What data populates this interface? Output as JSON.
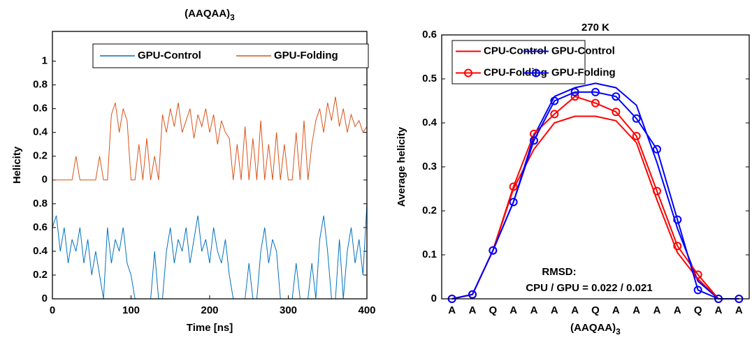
{
  "chart_data": [
    {
      "type": "line",
      "title": "(AAQAA)",
      "title_subscript": "3",
      "xlabel": "Time [ns]",
      "ylabel": "Helicity",
      "x": [
        0,
        5,
        10,
        15,
        20,
        25,
        30,
        35,
        40,
        45,
        50,
        55,
        60,
        65,
        70,
        75,
        80,
        85,
        90,
        95,
        100,
        105,
        110,
        115,
        120,
        125,
        130,
        135,
        140,
        145,
        150,
        155,
        160,
        165,
        170,
        175,
        180,
        185,
        190,
        195,
        200,
        205,
        210,
        215,
        220,
        225,
        230,
        235,
        240,
        245,
        250,
        255,
        260,
        265,
        270,
        275,
        280,
        285,
        290,
        295,
        300,
        305,
        310,
        315,
        320,
        325,
        330,
        335,
        340,
        345,
        350,
        355,
        360,
        365,
        370,
        375,
        380,
        385,
        390,
        395,
        400
      ],
      "series": [
        {
          "name": "GPU-Control",
          "color": "#0072bd",
          "values": [
            0.6,
            0.7,
            0.4,
            0.6,
            0.3,
            0.5,
            0.4,
            0.6,
            0.3,
            0.5,
            0.2,
            0.4,
            0.2,
            0,
            0.6,
            0.3,
            0.5,
            0.4,
            0.6,
            0.3,
            0.2,
            0,
            0,
            0,
            0,
            0,
            0.4,
            0,
            0,
            0.4,
            0.6,
            0.3,
            0.5,
            0.4,
            0.6,
            0.3,
            0.5,
            0.7,
            0.4,
            0.5,
            0.3,
            0.6,
            0.4,
            0.3,
            0.5,
            0.2,
            0,
            0,
            0,
            0,
            0.3,
            0,
            0,
            0.4,
            0.6,
            0.3,
            0.5,
            0.4,
            0,
            0,
            0,
            0,
            0.3,
            0,
            0,
            0,
            0.3,
            0,
            0.5,
            0.7,
            0.4,
            0,
            0,
            0.5,
            0,
            0.4,
            0.6,
            0.3,
            0.5,
            0.2,
            0.8
          ]
        },
        {
          "name": "GPU-Folding",
          "color": "#d95319",
          "values": [
            1,
            1,
            1,
            1,
            1,
            1,
            1.2,
            1,
            1,
            1,
            1,
            1,
            1.2,
            1,
            1,
            1.55,
            1.65,
            1.4,
            1.6,
            1.5,
            1,
            1,
            1.3,
            1,
            1.35,
            1,
            1.2,
            1,
            1.55,
            1.4,
            1.6,
            1.45,
            1.65,
            1.4,
            1.5,
            1.6,
            1.35,
            1.55,
            1.45,
            1.6,
            1.4,
            1.55,
            1.3,
            1.5,
            1.4,
            1.35,
            1,
            1.3,
            1,
            1.45,
            1,
            1.35,
            1,
            1.5,
            1,
            1.3,
            1,
            1.4,
            1,
            1.3,
            1,
            1,
            1.4,
            1,
            1.5,
            1,
            1.3,
            1.5,
            1.6,
            1.4,
            1.65,
            1.5,
            1.7,
            1.45,
            1.6,
            1.4,
            1.55,
            1.45,
            1.5,
            1.4,
            1.45
          ]
        }
      ],
      "xlim": [
        0,
        400
      ],
      "xticks": [
        0,
        100,
        200,
        300,
        400
      ],
      "ylim": [
        0,
        2.25
      ],
      "yticks": [
        0,
        0.2,
        0.4,
        0.6,
        0.8,
        {
          "value": 1,
          "label": "0"
        },
        {
          "value": 1.2,
          "label": "0.2"
        },
        {
          "value": 1.4,
          "label": "0.4"
        },
        {
          "value": 1.6,
          "label": "0.6"
        },
        {
          "value": 1.8,
          "label": "0.8"
        },
        {
          "value": 2,
          "label": "1"
        }
      ],
      "legend": "top-right"
    },
    {
      "type": "line",
      "title": "270 K",
      "xlabel": "(AAQAA)",
      "xlabel_subscript": "3",
      "ylabel": "Average helicity",
      "categories": [
        "A",
        "A",
        "Q",
        "A",
        "A",
        "A",
        "A",
        "Q",
        "A",
        "A",
        "A",
        "A",
        "Q",
        "A",
        "A"
      ],
      "series": [
        {
          "name": "CPU-Control",
          "color": "#ff0000",
          "marker": false,
          "values": [
            0,
            0.01,
            0.11,
            0.25,
            0.34,
            0.4,
            0.415,
            0.415,
            0.405,
            0.355,
            0.225,
            0.105,
            0.045,
            0,
            0
          ]
        },
        {
          "name": "GPU-Control",
          "color": "#0000ff",
          "marker": false,
          "values": [
            0,
            0.01,
            0.11,
            0.22,
            0.37,
            0.46,
            0.48,
            0.49,
            0.48,
            0.44,
            0.31,
            0.16,
            0.04,
            0,
            0
          ]
        },
        {
          "name": "CPU-Folding",
          "color": "#ff0000",
          "marker": true,
          "values": [
            0,
            0.01,
            0.11,
            0.255,
            0.375,
            0.42,
            0.46,
            0.445,
            0.425,
            0.37,
            0.245,
            0.12,
            0.055,
            0,
            0
          ]
        },
        {
          "name": "GPU-Folding",
          "color": "#0000ff",
          "marker": true,
          "values": [
            0,
            0.01,
            0.11,
            0.22,
            0.36,
            0.45,
            0.47,
            0.47,
            0.46,
            0.41,
            0.34,
            0.18,
            0.02,
            0,
            0
          ]
        }
      ],
      "ylim": [
        0,
        0.6
      ],
      "yticks": [
        0,
        0.1,
        0.2,
        0.3,
        0.4,
        0.5,
        0.6
      ],
      "annotations": [
        "RMSD:",
        "CPU / GPU = 0.022 / 0.021"
      ],
      "legend": "top"
    }
  ]
}
